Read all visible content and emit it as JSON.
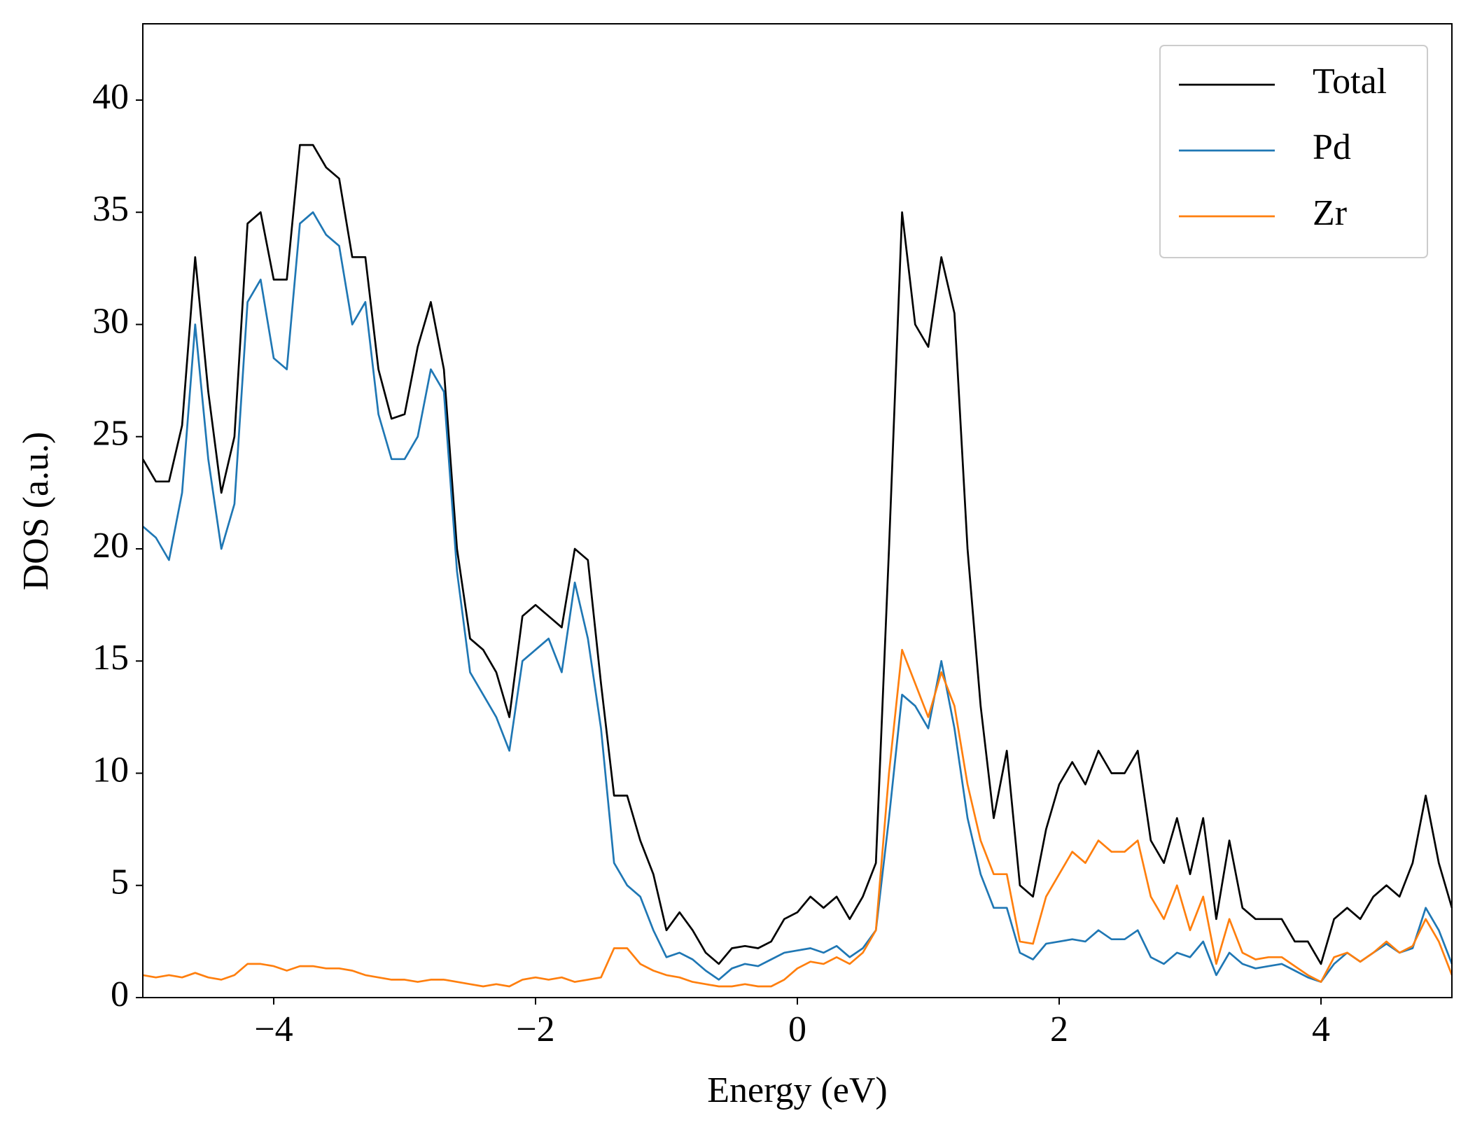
{
  "chart_data": {
    "type": "line",
    "xlabel": "Energy (eV)",
    "ylabel": "DOS (a.u.)",
    "x": [
      -5.0,
      -4.9,
      -4.8,
      -4.7,
      -4.6,
      -4.5,
      -4.4,
      -4.3,
      -4.2,
      -4.1,
      -4.0,
      -3.9,
      -3.8,
      -3.7,
      -3.6,
      -3.5,
      -3.4,
      -3.3,
      -3.2,
      -3.1,
      -3.0,
      -2.9,
      -2.8,
      -2.7,
      -2.6,
      -2.5,
      -2.4,
      -2.3,
      -2.2,
      -2.1,
      -2.0,
      -1.9,
      -1.8,
      -1.7,
      -1.6,
      -1.5,
      -1.4,
      -1.3,
      -1.2,
      -1.1,
      -1.0,
      -0.9,
      -0.8,
      -0.7,
      -0.6,
      -0.5,
      -0.4,
      -0.3,
      -0.2,
      -0.1,
      0.0,
      0.1,
      0.2,
      0.3,
      0.4,
      0.5,
      0.6,
      0.7,
      0.8,
      0.9,
      1.0,
      1.1,
      1.2,
      1.3,
      1.4,
      1.5,
      1.6,
      1.7,
      1.8,
      1.9,
      2.0,
      2.1,
      2.2,
      2.3,
      2.4,
      2.5,
      2.6,
      2.7,
      2.8,
      2.9,
      3.0,
      3.1,
      3.2,
      3.3,
      3.4,
      3.5,
      3.6,
      3.7,
      3.8,
      3.9,
      4.0,
      4.1,
      4.2,
      4.3,
      4.4,
      4.5,
      4.6,
      4.7,
      4.8,
      4.9,
      5.0
    ],
    "series": [
      {
        "name": "Total",
        "color": "#000000",
        "values": [
          24,
          23,
          23,
          25.5,
          33,
          27,
          22.5,
          25,
          34.5,
          35,
          32,
          32,
          38,
          38,
          37,
          36.5,
          33,
          33,
          28,
          25.8,
          26,
          29,
          31,
          28,
          20,
          16,
          15.5,
          14.5,
          12.5,
          17,
          17.5,
          17,
          16.5,
          20,
          19.5,
          14,
          9,
          9,
          7,
          5.5,
          3,
          3.8,
          3,
          2,
          1.5,
          2.2,
          2.3,
          2.2,
          2.5,
          3.5,
          3.8,
          4.5,
          4,
          4.5,
          3.5,
          4.5,
          6,
          20,
          35,
          30,
          29,
          33,
          30.5,
          20,
          13,
          8,
          11,
          5,
          4.5,
          7.5,
          9.5,
          10.5,
          9.5,
          11,
          10,
          10,
          11,
          7,
          6,
          8,
          5.5,
          8,
          3.5,
          7,
          4,
          3.5,
          3.5,
          3.5,
          2.5,
          2.5,
          1.5,
          3.5,
          4,
          3.5,
          4.5,
          5,
          4.5,
          6,
          9,
          6,
          4
        ]
      },
      {
        "name": "Pd",
        "color": "#1f77b4",
        "values": [
          21,
          20.5,
          19.5,
          22.5,
          30,
          24,
          20,
          22,
          31,
          32,
          28.5,
          28,
          34.5,
          35,
          34,
          33.5,
          30,
          31,
          26,
          24,
          24,
          25,
          28,
          27,
          19,
          14.5,
          13.5,
          12.5,
          11,
          15,
          15.5,
          16,
          14.5,
          18.5,
          16,
          12,
          6,
          5,
          4.5,
          3,
          1.8,
          2,
          1.7,
          1.2,
          0.8,
          1.3,
          1.5,
          1.4,
          1.7,
          2,
          2.1,
          2.2,
          2,
          2.3,
          1.8,
          2.2,
          3,
          8,
          13.5,
          13,
          12,
          15,
          12,
          8,
          5.5,
          4,
          4,
          2,
          1.7,
          2.4,
          2.5,
          2.6,
          2.5,
          3,
          2.6,
          2.6,
          3,
          1.8,
          1.5,
          2,
          1.8,
          2.5,
          1,
          2,
          1.5,
          1.3,
          1.4,
          1.5,
          1.2,
          0.9,
          0.7,
          1.5,
          2,
          1.6,
          2,
          2.4,
          2,
          2.2,
          4,
          3,
          1.5
        ]
      },
      {
        "name": "Zr",
        "color": "#ff7f0e",
        "values": [
          1,
          0.9,
          1,
          0.9,
          1.1,
          0.9,
          0.8,
          1,
          1.5,
          1.5,
          1.4,
          1.2,
          1.4,
          1.4,
          1.3,
          1.3,
          1.2,
          1,
          0.9,
          0.8,
          0.8,
          0.7,
          0.8,
          0.8,
          0.7,
          0.6,
          0.5,
          0.6,
          0.5,
          0.8,
          0.9,
          0.8,
          0.9,
          0.7,
          0.8,
          0.9,
          2.2,
          2.2,
          1.5,
          1.2,
          1,
          0.9,
          0.7,
          0.6,
          0.5,
          0.5,
          0.6,
          0.5,
          0.5,
          0.8,
          1.3,
          1.6,
          1.5,
          1.8,
          1.5,
          2,
          3,
          10,
          15.5,
          14,
          12.5,
          14.5,
          13,
          9.5,
          7,
          5.5,
          5.5,
          2.5,
          2.4,
          4.5,
          5.5,
          6.5,
          6,
          7,
          6.5,
          6.5,
          7,
          4.5,
          3.5,
          5,
          3,
          4.5,
          1.5,
          3.5,
          2,
          1.7,
          1.8,
          1.8,
          1.4,
          1,
          0.7,
          1.8,
          2,
          1.6,
          2,
          2.5,
          2,
          2.3,
          3.5,
          2.5,
          1
        ]
      }
    ],
    "xlim": [
      -5,
      5
    ],
    "ylim": [
      0,
      43.4
    ],
    "xticks": [
      {
        "value": -4,
        "label": "−4"
      },
      {
        "value": -2,
        "label": "−2"
      },
      0,
      2,
      4
    ],
    "yticks": [
      0,
      5,
      10,
      15,
      20,
      25,
      30,
      35,
      40
    ],
    "legend": "upper right"
  }
}
